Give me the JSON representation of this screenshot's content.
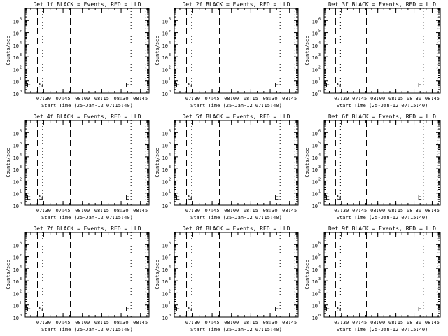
{
  "chart_data": [
    {
      "type": "line",
      "title": "Det 1f BLACK = Events, RED = LLD",
      "ylabel": "Counts/sec",
      "xlabel": "Start Time (25-Jan-12 07:15:40)",
      "x_tick_labels": [
        "07:30",
        "07:45",
        "08:00",
        "08:15",
        "08:30",
        "08:45"
      ],
      "x_ticks_minutes": [
        14.33,
        29.33,
        44.33,
        59.33,
        74.33,
        89.33
      ],
      "xlim_minutes": [
        0,
        96.0
      ],
      "ylim": [
        1,
        10000000
      ],
      "y_scale": "log",
      "y_tick_labels": [
        [
          "10",
          "0"
        ],
        [
          "10",
          "1"
        ],
        [
          "10",
          "2"
        ],
        [
          "10",
          "3"
        ],
        [
          "10",
          "4"
        ],
        [
          "10",
          "5"
        ],
        [
          "10",
          "6"
        ]
      ],
      "series": [],
      "markers": {
        "start_label": "S",
        "end_label": "E",
        "start_dashed_minutes": 9.5,
        "start_dotted_minutes": 13.5,
        "mid_dashed_minutes": 35.0,
        "end_dotted_minutes": [
          82.0,
          93.5
        ]
      },
      "grid": false
    },
    {
      "type": "line",
      "title": "Det 2f BLACK = Events, RED = LLD",
      "ylabel": "Counts/sec",
      "xlabel": "Start Time (25-Jan-12 07:15:40)",
      "x_tick_labels": [
        "07:30",
        "07:45",
        "08:00",
        "08:15",
        "08:30",
        "08:45"
      ],
      "x_ticks_minutes": [
        14.33,
        29.33,
        44.33,
        59.33,
        74.33,
        89.33
      ],
      "xlim_minutes": [
        0,
        96.0
      ],
      "ylim": [
        1,
        10000000
      ],
      "y_scale": "log",
      "y_tick_labels": [
        [
          "10",
          "0"
        ],
        [
          "10",
          "1"
        ],
        [
          "10",
          "2"
        ],
        [
          "10",
          "3"
        ],
        [
          "10",
          "4"
        ],
        [
          "10",
          "5"
        ],
        [
          "10",
          "6"
        ]
      ],
      "series": [],
      "markers": {
        "start_label": "S",
        "end_label": "E",
        "start_dashed_minutes": 9.5,
        "start_dotted_minutes": 13.5,
        "mid_dashed_minutes": 35.0,
        "end_dotted_minutes": [
          82.0,
          93.5
        ]
      },
      "grid": false
    },
    {
      "type": "line",
      "title": "Det 3f BLACK = Events, RED = LLD",
      "ylabel": "Counts/sec",
      "xlabel": "Start Time (25-Jan-12 07:15:40)",
      "x_tick_labels": [
        "07:30",
        "07:45",
        "08:00",
        "08:15",
        "08:30",
        "08:45"
      ],
      "x_ticks_minutes": [
        14.33,
        29.33,
        44.33,
        59.33,
        74.33,
        89.33
      ],
      "xlim_minutes": [
        0,
        96.0
      ],
      "ylim": [
        1,
        10000000
      ],
      "y_scale": "log",
      "y_tick_labels": [
        [
          "10",
          "0"
        ],
        [
          "10",
          "1"
        ],
        [
          "10",
          "2"
        ],
        [
          "10",
          "3"
        ],
        [
          "10",
          "4"
        ],
        [
          "10",
          "5"
        ],
        [
          "10",
          "6"
        ]
      ],
      "series": [],
      "markers": {
        "start_label": "S",
        "end_label": "E",
        "start_dashed_minutes": 9.5,
        "start_dotted_minutes": 13.5,
        "mid_dashed_minutes": 35.0,
        "end_dotted_minutes": [
          82.0,
          93.5
        ]
      },
      "grid": false
    },
    {
      "type": "line",
      "title": "Det 4f BLACK = Events, RED = LLD",
      "ylabel": "Counts/sec",
      "xlabel": "Start Time (25-Jan-12 07:15:40)",
      "x_tick_labels": [
        "07:30",
        "07:45",
        "08:00",
        "08:15",
        "08:30",
        "08:45"
      ],
      "x_ticks_minutes": [
        14.33,
        29.33,
        44.33,
        59.33,
        74.33,
        89.33
      ],
      "xlim_minutes": [
        0,
        96.0
      ],
      "ylim": [
        1,
        10000000
      ],
      "y_scale": "log",
      "y_tick_labels": [
        [
          "10",
          "0"
        ],
        [
          "10",
          "1"
        ],
        [
          "10",
          "2"
        ],
        [
          "10",
          "3"
        ],
        [
          "10",
          "4"
        ],
        [
          "10",
          "5"
        ],
        [
          "10",
          "6"
        ]
      ],
      "series": [],
      "markers": {
        "start_label": "S",
        "end_label": "E",
        "start_dashed_minutes": 9.5,
        "start_dotted_minutes": 13.5,
        "mid_dashed_minutes": 35.0,
        "end_dotted_minutes": [
          82.0,
          93.5
        ]
      },
      "grid": false
    },
    {
      "type": "line",
      "title": "Det 5f BLACK = Events, RED = LLD",
      "ylabel": "Counts/sec",
      "xlabel": "Start Time (25-Jan-12 07:15:40)",
      "x_tick_labels": [
        "07:30",
        "07:45",
        "08:00",
        "08:15",
        "08:30",
        "08:45"
      ],
      "x_ticks_minutes": [
        14.33,
        29.33,
        44.33,
        59.33,
        74.33,
        89.33
      ],
      "xlim_minutes": [
        0,
        96.0
      ],
      "ylim": [
        1,
        10000000
      ],
      "y_scale": "log",
      "y_tick_labels": [
        [
          "10",
          "0"
        ],
        [
          "10",
          "1"
        ],
        [
          "10",
          "2"
        ],
        [
          "10",
          "3"
        ],
        [
          "10",
          "4"
        ],
        [
          "10",
          "5"
        ],
        [
          "10",
          "6"
        ]
      ],
      "series": [],
      "markers": {
        "start_label": "S",
        "end_label": "E",
        "start_dashed_minutes": 9.5,
        "start_dotted_minutes": 13.5,
        "mid_dashed_minutes": 35.0,
        "end_dotted_minutes": [
          82.0,
          93.5
        ]
      },
      "grid": false
    },
    {
      "type": "line",
      "title": "Det 6f BLACK = Events, RED = LLD",
      "ylabel": "Counts/sec",
      "xlabel": "Start Time (25-Jan-12 07:15:40)",
      "x_tick_labels": [
        "07:30",
        "07:45",
        "08:00",
        "08:15",
        "08:30",
        "08:45"
      ],
      "x_ticks_minutes": [
        14.33,
        29.33,
        44.33,
        59.33,
        74.33,
        89.33
      ],
      "xlim_minutes": [
        0,
        96.0
      ],
      "ylim": [
        1,
        10000000
      ],
      "y_scale": "log",
      "y_tick_labels": [
        [
          "10",
          "0"
        ],
        [
          "10",
          "1"
        ],
        [
          "10",
          "2"
        ],
        [
          "10",
          "3"
        ],
        [
          "10",
          "4"
        ],
        [
          "10",
          "5"
        ],
        [
          "10",
          "6"
        ]
      ],
      "series": [],
      "markers": {
        "start_label": "S",
        "end_label": "E",
        "start_dashed_minutes": 9.5,
        "start_dotted_minutes": 13.5,
        "mid_dashed_minutes": 35.0,
        "end_dotted_minutes": [
          82.0,
          93.5
        ]
      },
      "grid": false
    },
    {
      "type": "line",
      "title": "Det 7f BLACK = Events, RED = LLD",
      "ylabel": "Counts/sec",
      "xlabel": "Start Time (25-Jan-12 07:15:40)",
      "x_tick_labels": [
        "07:30",
        "07:45",
        "08:00",
        "08:15",
        "08:30",
        "08:45"
      ],
      "x_ticks_minutes": [
        14.33,
        29.33,
        44.33,
        59.33,
        74.33,
        89.33
      ],
      "xlim_minutes": [
        0,
        96.0
      ],
      "ylim": [
        1,
        10000000
      ],
      "y_scale": "log",
      "y_tick_labels": [
        [
          "10",
          "0"
        ],
        [
          "10",
          "1"
        ],
        [
          "10",
          "2"
        ],
        [
          "10",
          "3"
        ],
        [
          "10",
          "4"
        ],
        [
          "10",
          "5"
        ],
        [
          "10",
          "6"
        ]
      ],
      "series": [],
      "markers": {
        "start_label": "S",
        "end_label": "E",
        "start_dashed_minutes": 9.5,
        "start_dotted_minutes": 13.5,
        "mid_dashed_minutes": 35.0,
        "end_dotted_minutes": [
          82.0,
          93.5
        ]
      },
      "grid": false
    },
    {
      "type": "line",
      "title": "Det 8f BLACK = Events, RED = LLD",
      "ylabel": "Counts/sec",
      "xlabel": "Start Time (25-Jan-12 07:15:40)",
      "x_tick_labels": [
        "07:30",
        "07:45",
        "08:00",
        "08:15",
        "08:30",
        "08:45"
      ],
      "x_ticks_minutes": [
        14.33,
        29.33,
        44.33,
        59.33,
        74.33,
        89.33
      ],
      "xlim_minutes": [
        0,
        96.0
      ],
      "ylim": [
        1,
        10000000
      ],
      "y_scale": "log",
      "y_tick_labels": [
        [
          "10",
          "0"
        ],
        [
          "10",
          "1"
        ],
        [
          "10",
          "2"
        ],
        [
          "10",
          "3"
        ],
        [
          "10",
          "4"
        ],
        [
          "10",
          "5"
        ],
        [
          "10",
          "6"
        ]
      ],
      "series": [],
      "markers": {
        "start_label": "S",
        "end_label": "E",
        "start_dashed_minutes": 9.5,
        "start_dotted_minutes": 13.5,
        "mid_dashed_minutes": 35.0,
        "end_dotted_minutes": [
          82.0,
          93.5
        ]
      },
      "grid": false
    },
    {
      "type": "line",
      "title": "Det 9f BLACK = Events, RED = LLD",
      "ylabel": "Counts/sec",
      "xlabel": "Start Time (25-Jan-12 07:15:40)",
      "x_tick_labels": [
        "07:30",
        "07:45",
        "08:00",
        "08:15",
        "08:30",
        "08:45"
      ],
      "x_ticks_minutes": [
        14.33,
        29.33,
        44.33,
        59.33,
        74.33,
        89.33
      ],
      "xlim_minutes": [
        0,
        96.0
      ],
      "ylim": [
        1,
        10000000
      ],
      "y_scale": "log",
      "y_tick_labels": [
        [
          "10",
          "0"
        ],
        [
          "10",
          "1"
        ],
        [
          "10",
          "2"
        ],
        [
          "10",
          "3"
        ],
        [
          "10",
          "4"
        ],
        [
          "10",
          "5"
        ],
        [
          "10",
          "6"
        ]
      ],
      "series": [],
      "markers": {
        "start_label": "S",
        "end_label": "E",
        "start_dashed_minutes": 9.5,
        "start_dotted_minutes": 13.5,
        "mid_dashed_minutes": 35.0,
        "end_dotted_minutes": [
          82.0,
          93.5
        ]
      },
      "grid": false
    }
  ],
  "colors": {
    "background": "#ffffff",
    "foreground": "#000000",
    "series_events": "#000000",
    "series_lld": "#ff0000"
  }
}
